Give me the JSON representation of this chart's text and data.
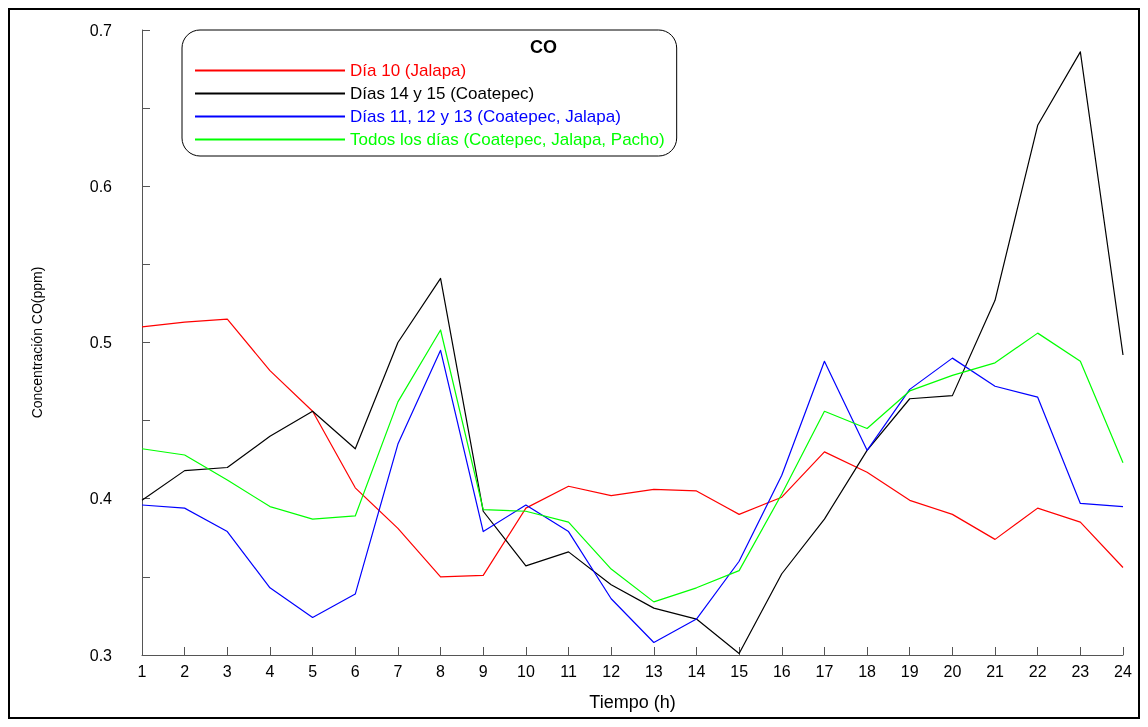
{
  "chart_data": {
    "type": "line",
    "xlabel": "Tiempo (h)",
    "ylabel": "Concentración CO(ppm)",
    "legend_title": "CO",
    "legend": "top left",
    "marker": "none",
    "grid": false,
    "x": [
      1,
      2,
      3,
      4,
      5,
      6,
      7,
      8,
      9,
      10,
      11,
      12,
      13,
      14,
      15,
      16,
      17,
      18,
      19,
      20,
      21,
      22,
      23,
      24
    ],
    "xlim": [
      1,
      24
    ],
    "xticks": [
      1,
      2,
      3,
      4,
      5,
      6,
      7,
      8,
      9,
      10,
      11,
      12,
      13,
      14,
      15,
      16,
      17,
      18,
      19,
      20,
      21,
      22,
      23,
      24
    ],
    "ylim": [
      0.3,
      0.7
    ],
    "yticks": [
      0.3,
      {
        "value": 0.35,
        "label": null
      },
      0.4,
      {
        "value": 0.45,
        "label": null
      },
      0.5,
      {
        "value": 0.55,
        "label": null
      },
      0.6,
      {
        "value": 0.65,
        "label": null
      },
      0.7
    ],
    "series": [
      {
        "name": "Día 10 (Jalapa)",
        "color": "#ff0000",
        "values": [
          0.51,
          0.513,
          0.515,
          0.482,
          0.456,
          0.407,
          0.381,
          0.35,
          0.351,
          0.394,
          0.408,
          0.402,
          0.406,
          0.405,
          0.39,
          0.401,
          0.43,
          0.417,
          0.399,
          0.39,
          0.374,
          0.394,
          0.385,
          0.356
        ]
      },
      {
        "name": "Días 14 y 15 (Coatepec)",
        "color": "#000000",
        "values": [
          0.399,
          0.418,
          0.42,
          0.44,
          0.456,
          0.432,
          0.5,
          0.541,
          0.392,
          0.357,
          0.366,
          0.345,
          0.33,
          0.323,
          0.301,
          0.352,
          0.387,
          0.431,
          0.464,
          0.466,
          0.527,
          0.639,
          0.686,
          0.492
        ]
      },
      {
        "name": "Días 11, 12 y 13 (Coatepec, Jalapa)",
        "color": "#0000ff",
        "values": [
          0.396,
          0.394,
          0.379,
          0.343,
          0.324,
          0.339,
          0.435,
          0.495,
          0.379,
          0.396,
          0.379,
          0.336,
          0.308,
          0.323,
          0.36,
          0.415,
          0.488,
          0.431,
          0.47,
          0.49,
          0.472,
          0.465,
          0.397,
          0.395
        ]
      },
      {
        "name": "Todos los días (Coatepec, Jalapa, Pacho)",
        "color": "#00ff00",
        "values": [
          0.432,
          0.428,
          0.412,
          0.395,
          0.387,
          0.389,
          0.462,
          0.508,
          0.393,
          0.392,
          0.385,
          0.355,
          0.334,
          0.343,
          0.354,
          0.403,
          0.456,
          0.445,
          0.469,
          0.479,
          0.487,
          0.506,
          0.488,
          0.423
        ]
      }
    ]
  }
}
